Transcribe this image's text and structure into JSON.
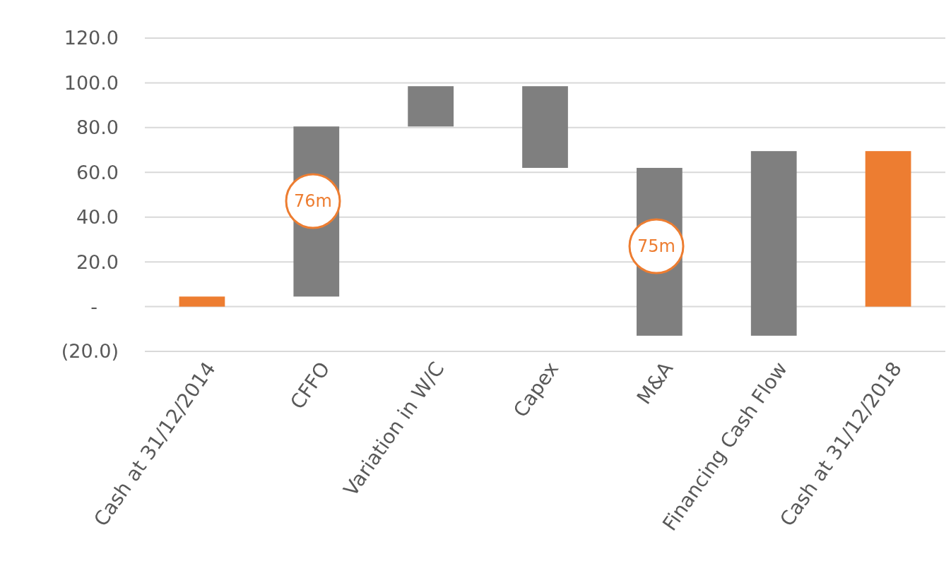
{
  "chart_data": {
    "type": "bar",
    "categories": [
      "Cash at 31/12/2014",
      "CFFO",
      "Variation in W/C",
      "Capex",
      "M&A",
      "Financing Cash Flow",
      "Cash at 31/12/2018"
    ],
    "values": [
      4.5,
      76,
      18,
      -36.5,
      -75,
      82.5,
      69.5
    ],
    "base": [
      0,
      4.5,
      80.5,
      98.5,
      62,
      -13,
      0
    ],
    "colors": [
      "#ed7d31",
      "#7f7f7f",
      "#7f7f7f",
      "#7f7f7f",
      "#7f7f7f",
      "#7f7f7f",
      "#ed7d31"
    ],
    "ylim": [
      -20,
      120
    ],
    "yticks": [
      {
        "value": -20,
        "label": "(20.0)"
      },
      {
        "value": 0,
        "label": "-"
      },
      {
        "value": 20,
        "label": "20.0"
      },
      {
        "value": 40,
        "label": "40.0"
      },
      {
        "value": 60,
        "label": "60.0"
      },
      {
        "value": 80,
        "label": "80.0"
      },
      {
        "value": 100,
        "label": "100.0"
      },
      {
        "value": 120,
        "label": "120.0"
      }
    ],
    "grid": "y",
    "annotations": [
      "76m",
      "75m"
    ]
  }
}
